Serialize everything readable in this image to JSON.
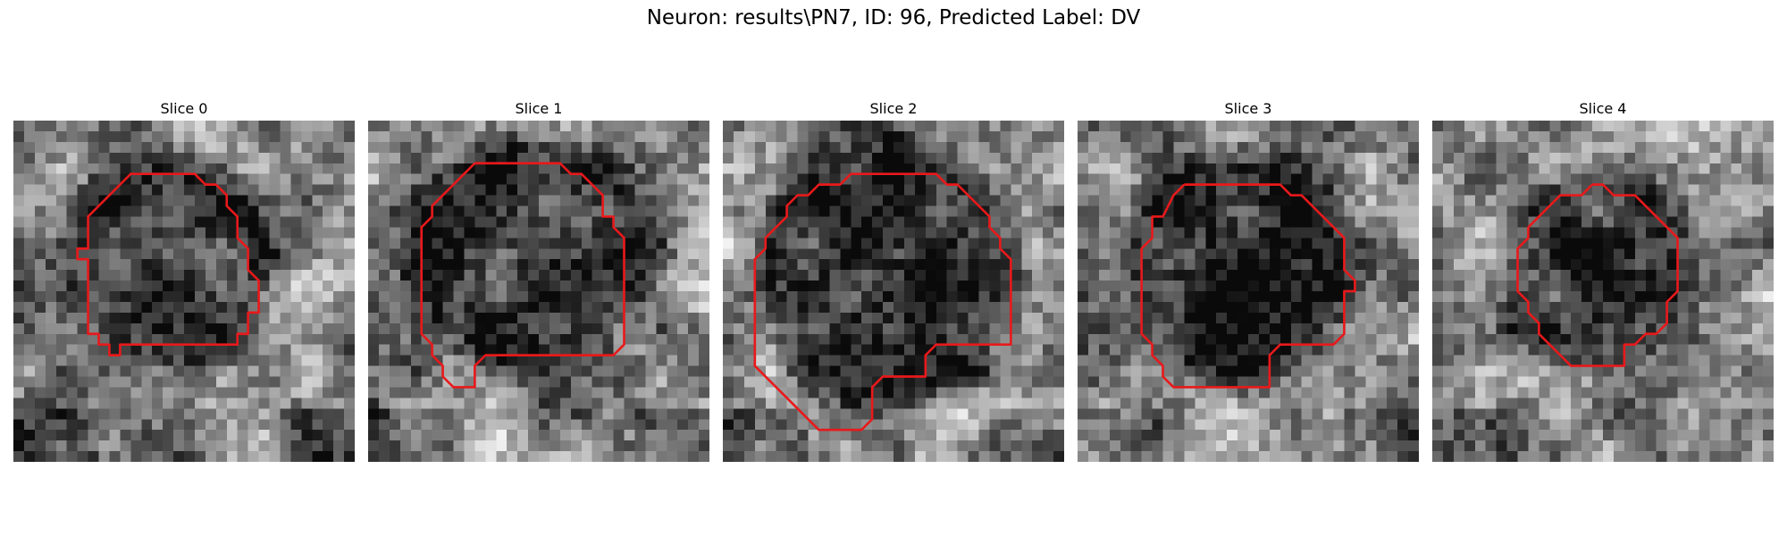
{
  "figure": {
    "title": "Neuron: results\\PN7, ID: 96, Predicted Label: DV"
  },
  "colors": {
    "contour": "#e8191b",
    "background": "#ffffff"
  },
  "image_grid_size": 32,
  "panels": [
    {
      "title": "Slice 0",
      "seed": 11,
      "dark_center": [
        14.5,
        13.5
      ],
      "dark_radius": 8.5,
      "contour": [
        [
          12,
          5
        ],
        [
          17,
          5
        ],
        [
          18,
          6
        ],
        [
          19,
          6
        ],
        [
          20,
          7
        ],
        [
          20,
          8
        ],
        [
          21,
          9
        ],
        [
          21,
          11
        ],
        [
          22,
          12
        ],
        [
          22,
          14
        ],
        [
          23,
          15
        ],
        [
          23,
          18
        ],
        [
          22,
          18
        ],
        [
          22,
          20
        ],
        [
          21,
          20
        ],
        [
          21,
          21
        ],
        [
          19,
          21
        ],
        [
          10,
          21
        ],
        [
          10,
          22
        ],
        [
          9,
          22
        ],
        [
          9,
          21
        ],
        [
          8,
          21
        ],
        [
          8,
          20
        ],
        [
          7,
          20
        ],
        [
          7,
          13
        ],
        [
          6,
          13
        ],
        [
          6,
          12
        ],
        [
          7,
          12
        ],
        [
          7,
          9
        ],
        [
          8,
          8
        ],
        [
          9,
          7
        ],
        [
          10,
          6
        ],
        [
          11,
          5
        ],
        [
          12,
          5
        ]
      ]
    },
    {
      "title": "Slice 1",
      "seed": 23,
      "dark_center": [
        15.5,
        12.5
      ],
      "dark_radius": 10,
      "contour": [
        [
          10,
          4
        ],
        [
          18,
          4
        ],
        [
          19,
          5
        ],
        [
          20,
          5
        ],
        [
          21,
          6
        ],
        [
          22,
          7
        ],
        [
          22,
          9
        ],
        [
          23,
          9
        ],
        [
          23,
          10
        ],
        [
          24,
          11
        ],
        [
          24,
          21
        ],
        [
          23,
          22
        ],
        [
          11,
          22
        ],
        [
          10,
          23
        ],
        [
          10,
          25
        ],
        [
          8,
          25
        ],
        [
          7,
          24
        ],
        [
          7,
          23
        ],
        [
          6,
          22
        ],
        [
          6,
          21
        ],
        [
          5,
          20
        ],
        [
          5,
          10
        ],
        [
          6,
          9
        ],
        [
          6,
          8
        ],
        [
          7,
          7
        ],
        [
          8,
          6
        ],
        [
          9,
          5
        ],
        [
          10,
          4
        ]
      ]
    },
    {
      "title": "Slice 2",
      "seed": 37,
      "dark_center": [
        15.5,
        14.5
      ],
      "dark_radius": 11,
      "contour": [
        [
          12,
          5
        ],
        [
          20,
          5
        ],
        [
          21,
          6
        ],
        [
          22,
          6
        ],
        [
          23,
          7
        ],
        [
          24,
          8
        ],
        [
          25,
          9
        ],
        [
          25,
          10
        ],
        [
          26,
          11
        ],
        [
          26,
          12
        ],
        [
          27,
          13
        ],
        [
          27,
          21
        ],
        [
          20,
          21
        ],
        [
          19,
          22
        ],
        [
          19,
          24
        ],
        [
          15,
          24
        ],
        [
          14,
          25
        ],
        [
          14,
          28
        ],
        [
          13,
          29
        ],
        [
          9,
          29
        ],
        [
          4,
          24
        ],
        [
          3,
          23
        ],
        [
          3,
          13
        ],
        [
          4,
          12
        ],
        [
          4,
          11
        ],
        [
          5,
          10
        ],
        [
          6,
          9
        ],
        [
          6,
          8
        ],
        [
          7,
          7
        ],
        [
          8,
          7
        ],
        [
          9,
          6
        ],
        [
          11,
          6
        ],
        [
          12,
          5
        ]
      ]
    },
    {
      "title": "Slice 3",
      "seed": 53,
      "dark_center": [
        15.0,
        14.0
      ],
      "dark_radius": 9.5,
      "contour": [
        [
          10,
          6
        ],
        [
          19,
          6
        ],
        [
          20,
          7
        ],
        [
          21,
          7
        ],
        [
          22,
          8
        ],
        [
          23,
          9
        ],
        [
          24,
          10
        ],
        [
          25,
          11
        ],
        [
          25,
          14
        ],
        [
          26,
          15
        ],
        [
          26,
          16
        ],
        [
          25,
          16
        ],
        [
          25,
          20
        ],
        [
          24,
          21
        ],
        [
          19,
          21
        ],
        [
          18,
          22
        ],
        [
          18,
          25
        ],
        [
          9,
          25
        ],
        [
          8,
          24
        ],
        [
          8,
          23
        ],
        [
          7,
          22
        ],
        [
          7,
          21
        ],
        [
          6,
          20
        ],
        [
          6,
          12
        ],
        [
          7,
          11
        ],
        [
          7,
          9
        ],
        [
          8,
          9
        ],
        [
          9,
          7
        ],
        [
          10,
          6
        ]
      ]
    },
    {
      "title": "Slice 4",
      "seed": 71,
      "dark_center": [
        15.0,
        14.0
      ],
      "dark_radius": 8,
      "contour": [
        [
          15,
          6
        ],
        [
          16,
          6
        ],
        [
          17,
          7
        ],
        [
          19,
          7
        ],
        [
          20,
          8
        ],
        [
          21,
          9
        ],
        [
          22,
          10
        ],
        [
          23,
          11
        ],
        [
          23,
          16
        ],
        [
          22,
          17
        ],
        [
          22,
          19
        ],
        [
          21,
          20
        ],
        [
          20,
          20
        ],
        [
          19,
          21
        ],
        [
          18,
          21
        ],
        [
          18,
          23
        ],
        [
          13,
          23
        ],
        [
          12,
          22
        ],
        [
          11,
          21
        ],
        [
          10,
          20
        ],
        [
          10,
          19
        ],
        [
          9,
          18
        ],
        [
          9,
          17
        ],
        [
          8,
          16
        ],
        [
          8,
          12
        ],
        [
          9,
          11
        ],
        [
          9,
          10
        ],
        [
          10,
          9
        ],
        [
          11,
          8
        ],
        [
          12,
          7
        ],
        [
          14,
          7
        ],
        [
          15,
          6
        ]
      ]
    }
  ]
}
